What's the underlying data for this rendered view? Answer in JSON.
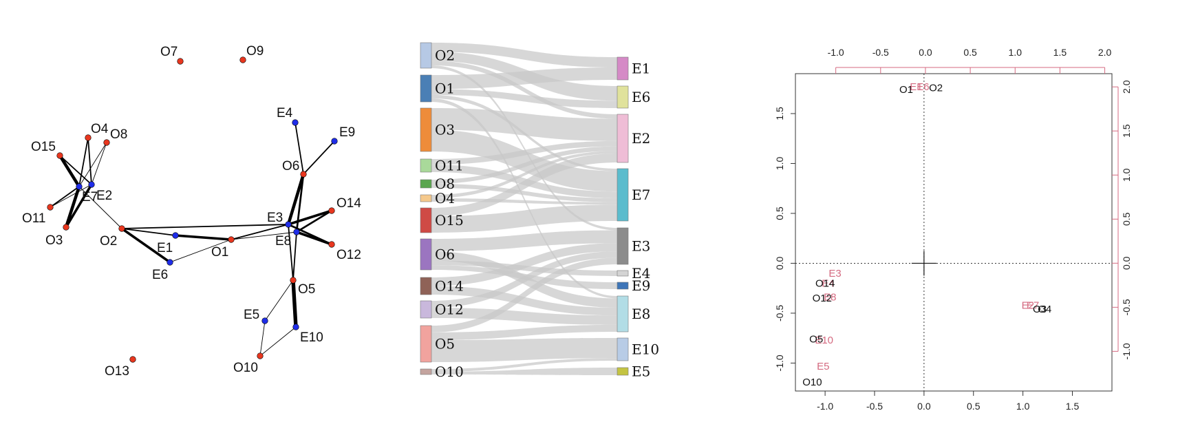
{
  "colors": {
    "object_node": "#e8371f",
    "event_node": "#1f2de8",
    "edge": "#000000",
    "flow": "#c8c8c8",
    "ca_object": "#111111",
    "ca_event": "#d46a80",
    "axis": "#333333"
  },
  "network": {
    "nodes": [
      {
        "id": "O7",
        "type": "object",
        "label": "O7"
      },
      {
        "id": "O9",
        "type": "object",
        "label": "O9"
      },
      {
        "id": "O4",
        "type": "object",
        "label": "O4"
      },
      {
        "id": "O8",
        "type": "object",
        "label": "O8"
      },
      {
        "id": "O15",
        "type": "object",
        "label": "O15"
      },
      {
        "id": "E7",
        "type": "event",
        "label": "E7"
      },
      {
        "id": "E2",
        "type": "event",
        "label": "E2"
      },
      {
        "id": "O11",
        "type": "object",
        "label": "O11"
      },
      {
        "id": "O3",
        "type": "object",
        "label": "O3"
      },
      {
        "id": "O2",
        "type": "object",
        "label": "O2"
      },
      {
        "id": "E1",
        "type": "event",
        "label": "E1"
      },
      {
        "id": "E6",
        "type": "event",
        "label": "E6"
      },
      {
        "id": "O1",
        "type": "object",
        "label": "O1"
      },
      {
        "id": "E4",
        "type": "event",
        "label": "E4"
      },
      {
        "id": "E9",
        "type": "event",
        "label": "E9"
      },
      {
        "id": "O6",
        "type": "object",
        "label": "O6"
      },
      {
        "id": "E3",
        "type": "event",
        "label": "E3"
      },
      {
        "id": "E8",
        "type": "event",
        "label": "E8"
      },
      {
        "id": "O14",
        "type": "object",
        "label": "O14"
      },
      {
        "id": "O12",
        "type": "object",
        "label": "O12"
      },
      {
        "id": "O5",
        "type": "object",
        "label": "O5"
      },
      {
        "id": "E5",
        "type": "event",
        "label": "E5"
      },
      {
        "id": "E10",
        "type": "event",
        "label": "E10"
      },
      {
        "id": "O10",
        "type": "object",
        "label": "O10"
      },
      {
        "id": "O13",
        "type": "object",
        "label": "O13"
      }
    ],
    "edges": [
      {
        "from": "O15",
        "to": "E7",
        "weight": 5
      },
      {
        "from": "O15",
        "to": "E2",
        "weight": 2
      },
      {
        "from": "O4",
        "to": "E7",
        "weight": 2
      },
      {
        "from": "O4",
        "to": "E2",
        "weight": 2
      },
      {
        "from": "O8",
        "to": "E7",
        "weight": 1
      },
      {
        "from": "O8",
        "to": "E2",
        "weight": 1
      },
      {
        "from": "O11",
        "to": "E7",
        "weight": 2
      },
      {
        "from": "O11",
        "to": "E2",
        "weight": 1
      },
      {
        "from": "O3",
        "to": "E7",
        "weight": 5
      },
      {
        "from": "O3",
        "to": "E2",
        "weight": 4
      },
      {
        "from": "O2",
        "to": "E7",
        "weight": 1
      },
      {
        "from": "O2",
        "to": "E1",
        "weight": 2
      },
      {
        "from": "O2",
        "to": "E6",
        "weight": 4
      },
      {
        "from": "O2",
        "to": "E3",
        "weight": 2
      },
      {
        "from": "E1",
        "to": "O1",
        "weight": 4
      },
      {
        "from": "E6",
        "to": "O1",
        "weight": 1
      },
      {
        "from": "O1",
        "to": "E3",
        "weight": 2
      },
      {
        "from": "O1",
        "to": "E8",
        "weight": 1
      },
      {
        "from": "E4",
        "to": "O6",
        "weight": 2
      },
      {
        "from": "O6",
        "to": "E9",
        "weight": 2
      },
      {
        "from": "O6",
        "to": "E3",
        "weight": 5
      },
      {
        "from": "O6",
        "to": "E8",
        "weight": 3
      },
      {
        "from": "O14",
        "to": "E3",
        "weight": 4
      },
      {
        "from": "O14",
        "to": "E8",
        "weight": 3
      },
      {
        "from": "O12",
        "to": "E3",
        "weight": 3
      },
      {
        "from": "O12",
        "to": "E8",
        "weight": 4
      },
      {
        "from": "O5",
        "to": "E3",
        "weight": 2
      },
      {
        "from": "O5",
        "to": "E8",
        "weight": 2
      },
      {
        "from": "O5",
        "to": "E10",
        "weight": 6
      },
      {
        "from": "O5",
        "to": "E5",
        "weight": 1
      },
      {
        "from": "E5",
        "to": "O10",
        "weight": 1
      },
      {
        "from": "E10",
        "to": "O10",
        "weight": 1
      }
    ]
  },
  "sankey": {
    "left_nodes": [
      {
        "id": "O2",
        "label": "O2",
        "color": "#b6c9e5",
        "size": 3
      },
      {
        "id": "O1",
        "label": "O1",
        "color": "#4a7fb5",
        "size": 3
      },
      {
        "id": "O3",
        "label": "O3",
        "color": "#ee8c3a",
        "size": 5
      },
      {
        "id": "O11",
        "label": "O11",
        "color": "#a9d99a",
        "size": 1.5
      },
      {
        "id": "O8",
        "label": "O8",
        "color": "#5aa64f",
        "size": 1
      },
      {
        "id": "O4",
        "label": "O4",
        "color": "#f5c98c",
        "size": 0.7
      },
      {
        "id": "O15",
        "label": "O15",
        "color": "#cf4a45",
        "size": 3
      },
      {
        "id": "O6",
        "label": "O6",
        "color": "#9b75c0",
        "size": 4
      },
      {
        "id": "O14",
        "label": "O14",
        "color": "#8f6257",
        "size": 2
      },
      {
        "id": "O12",
        "label": "O12",
        "color": "#c9b8dc",
        "size": 2
      },
      {
        "id": "O5",
        "label": "O5",
        "color": "#f1a39e",
        "size": 4.5
      },
      {
        "id": "O10",
        "label": "O10",
        "color": "#c4a49f",
        "size": 0.7
      }
    ],
    "right_nodes": [
      {
        "id": "E1",
        "label": "E1",
        "color": "#d58ac6",
        "size": 3
      },
      {
        "id": "E6",
        "label": "E6",
        "color": "#e0e29c",
        "size": 3
      },
      {
        "id": "E2",
        "label": "E2",
        "color": "#efbdd6",
        "size": 6.5
      },
      {
        "id": "E7",
        "label": "E7",
        "color": "#5bbccd",
        "size": 7
      },
      {
        "id": "E3",
        "label": "E3",
        "color": "#8c8c8c",
        "size": 5
      },
      {
        "id": "E4",
        "label": "E4",
        "color": "#d4d4d4",
        "size": 0.7
      },
      {
        "id": "E9",
        "label": "E9",
        "color": "#3e75b8",
        "size": 0.7
      },
      {
        "id": "E8",
        "label": "E8",
        "color": "#b2dde6",
        "size": 5
      },
      {
        "id": "E10",
        "label": "E10",
        "color": "#b8cce6",
        "size": 3
      },
      {
        "id": "E5",
        "label": "E5",
        "color": "#c4c442",
        "size": 0.9
      }
    ],
    "flows": [
      {
        "from": "O2",
        "to": "E1",
        "value": 1
      },
      {
        "from": "O2",
        "to": "E6",
        "value": 1
      },
      {
        "from": "O2",
        "to": "E2",
        "value": 0.5
      },
      {
        "from": "O2",
        "to": "E3",
        "value": 0.3
      },
      {
        "from": "O1",
        "to": "E1",
        "value": 1.2
      },
      {
        "from": "O1",
        "to": "E6",
        "value": 0.5
      },
      {
        "from": "O1",
        "to": "E7",
        "value": 0.3
      },
      {
        "from": "O1",
        "to": "E8",
        "value": 0.3
      },
      {
        "from": "O3",
        "to": "E2",
        "value": 2.5
      },
      {
        "from": "O3",
        "to": "E7",
        "value": 2.5
      },
      {
        "from": "O11",
        "to": "E2",
        "value": 0.6
      },
      {
        "from": "O11",
        "to": "E7",
        "value": 0.8
      },
      {
        "from": "O8",
        "to": "E2",
        "value": 0.5
      },
      {
        "from": "O8",
        "to": "E7",
        "value": 0.5
      },
      {
        "from": "O4",
        "to": "E2",
        "value": 0.3
      },
      {
        "from": "O4",
        "to": "E7",
        "value": 0.3
      },
      {
        "from": "O15",
        "to": "E2",
        "value": 1
      },
      {
        "from": "O15",
        "to": "E7",
        "value": 2
      },
      {
        "from": "O6",
        "to": "E3",
        "value": 1.6
      },
      {
        "from": "O6",
        "to": "E8",
        "value": 1.2
      },
      {
        "from": "O6",
        "to": "E4",
        "value": 0.6
      },
      {
        "from": "O6",
        "to": "E9",
        "value": 0.6
      },
      {
        "from": "O14",
        "to": "E3",
        "value": 1
      },
      {
        "from": "O14",
        "to": "E8",
        "value": 1
      },
      {
        "from": "O12",
        "to": "E3",
        "value": 0.8
      },
      {
        "from": "O12",
        "to": "E8",
        "value": 1.2
      },
      {
        "from": "O5",
        "to": "E3",
        "value": 0.8
      },
      {
        "from": "O5",
        "to": "E8",
        "value": 0.9
      },
      {
        "from": "O5",
        "to": "E10",
        "value": 2.6
      },
      {
        "from": "O10",
        "to": "E10",
        "value": 0.35
      },
      {
        "from": "O10",
        "to": "E5",
        "value": 0.35
      }
    ]
  },
  "chart_data": {
    "type": "scatter",
    "bottom_ticks": [
      "-1.0",
      "-0.5",
      "0.0",
      "0.5",
      "1.0",
      "1.5"
    ],
    "left_ticks": [
      "-1.0",
      "-0.5",
      "0.0",
      "0.5",
      "1.0",
      "1.5"
    ],
    "top_ticks": [
      "-1.0",
      "-0.5",
      "0.0",
      "0.5",
      "1.0",
      "1.5",
      "2.0"
    ],
    "right_ticks": [
      "-1.0",
      "-0.5",
      "0.0",
      "0.5",
      "1.0",
      "1.5",
      "2.0"
    ],
    "xlim": [
      -1.3,
      1.9
    ],
    "ylim": [
      -1.28,
      1.9
    ],
    "top_xlim": [
      -1.45,
      2.08
    ],
    "right_ylim": [
      -1.45,
      2.15
    ],
    "reference_lines": {
      "x": 0,
      "y": 0,
      "style": "dotted"
    },
    "row_points": [
      {
        "label": "O1",
        "x": -0.18,
        "y": 1.74
      },
      {
        "label": "O2",
        "x": 0.12,
        "y": 1.76
      },
      {
        "label": "O14",
        "x": -1.0,
        "y": -0.2
      },
      {
        "label": "O12",
        "x": -1.03,
        "y": -0.35
      },
      {
        "label": "O5",
        "x": -1.09,
        "y": -0.76
      },
      {
        "label": "O10",
        "x": -1.13,
        "y": -1.19
      },
      {
        "label": "O3",
        "x": 1.17,
        "y": -0.46
      },
      {
        "label": "O4",
        "x": 1.22,
        "y": -0.46
      }
    ],
    "column_points": [
      {
        "label": "E1",
        "x": -0.08,
        "y": 1.77
      },
      {
        "label": "E6",
        "x": -0.01,
        "y": 1.77
      },
      {
        "label": "E3",
        "x": -0.9,
        "y": -0.1
      },
      {
        "label": "E4",
        "x": -0.97,
        "y": -0.2
      },
      {
        "label": "E8",
        "x": -0.95,
        "y": -0.34
      },
      {
        "label": "E10",
        "x": -1.01,
        "y": -0.77
      },
      {
        "label": "E5",
        "x": -1.02,
        "y": -1.03
      },
      {
        "label": "E2",
        "x": 1.05,
        "y": -0.42
      },
      {
        "label": "E7",
        "x": 1.1,
        "y": -0.42
      }
    ]
  }
}
